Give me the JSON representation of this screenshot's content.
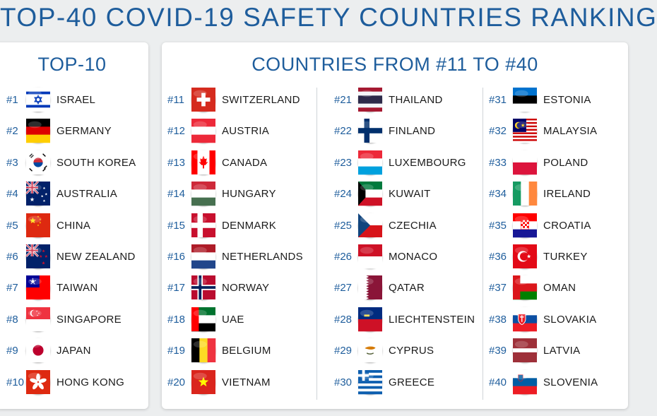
{
  "title": "TOP-40 COVID-19 SAFETY COUNTRIES RANKING",
  "left_panel": {
    "title": "TOP-10",
    "items": [
      {
        "rank": "#1",
        "country": "ISRAEL",
        "flag": "israel-flag-icon"
      },
      {
        "rank": "#2",
        "country": "GERMANY",
        "flag": "germany-flag-icon"
      },
      {
        "rank": "#3",
        "country": "SOUTH KOREA",
        "flag": "south-korea-flag-icon"
      },
      {
        "rank": "#4",
        "country": "AUSTRALIA",
        "flag": "australia-flag-icon"
      },
      {
        "rank": "#5",
        "country": "CHINA",
        "flag": "china-flag-icon"
      },
      {
        "rank": "#6",
        "country": "NEW ZEALAND",
        "flag": "new-zealand-flag-icon"
      },
      {
        "rank": "#7",
        "country": "TAIWAN",
        "flag": "taiwan-flag-icon"
      },
      {
        "rank": "#8",
        "country": "SINGAPORE",
        "flag": "singapore-flag-icon"
      },
      {
        "rank": "#9",
        "country": "JAPAN",
        "flag": "japan-flag-icon"
      },
      {
        "rank": "#10",
        "country": "HONG KONG",
        "flag": "hong-kong-flag-icon"
      }
    ]
  },
  "right_panel": {
    "title": "COUNTRIES FROM #11 TO #40",
    "columns": [
      {
        "items": [
          {
            "rank": "#11",
            "country": "SWITZERLAND",
            "flag": "switzerland-flag-icon"
          },
          {
            "rank": "#12",
            "country": "AUSTRIA",
            "flag": "austria-flag-icon"
          },
          {
            "rank": "#13",
            "country": "CANADA",
            "flag": "canada-flag-icon"
          },
          {
            "rank": "#14",
            "country": "HUNGARY",
            "flag": "hungary-flag-icon"
          },
          {
            "rank": "#15",
            "country": "DENMARK",
            "flag": "denmark-flag-icon"
          },
          {
            "rank": "#16",
            "country": "NETHERLANDS",
            "flag": "netherlands-flag-icon"
          },
          {
            "rank": "#17",
            "country": "NORWAY",
            "flag": "norway-flag-icon"
          },
          {
            "rank": "#18",
            "country": "UAE",
            "flag": "uae-flag-icon"
          },
          {
            "rank": "#19",
            "country": "BELGIUM",
            "flag": "belgium-flag-icon"
          },
          {
            "rank": "#20",
            "country": "VIETNAM",
            "flag": "vietnam-flag-icon"
          }
        ]
      },
      {
        "items": [
          {
            "rank": "#21",
            "country": "THAILAND",
            "flag": "thailand-flag-icon"
          },
          {
            "rank": "#22",
            "country": "FINLAND",
            "flag": "finland-flag-icon"
          },
          {
            "rank": "#23",
            "country": "LUXEMBOURG",
            "flag": "luxembourg-flag-icon"
          },
          {
            "rank": "#24",
            "country": "KUWAIT",
            "flag": "kuwait-flag-icon"
          },
          {
            "rank": "#25",
            "country": "CZECHIA",
            "flag": "czechia-flag-icon"
          },
          {
            "rank": "#26",
            "country": "MONACO",
            "flag": "monaco-flag-icon"
          },
          {
            "rank": "#27",
            "country": "QATAR",
            "flag": "qatar-flag-icon"
          },
          {
            "rank": "#28",
            "country": "LIECHTENSTEIN",
            "flag": "liechtenstein-flag-icon"
          },
          {
            "rank": "#29",
            "country": "CYPRUS",
            "flag": "cyprus-flag-icon"
          },
          {
            "rank": "#30",
            "country": "GREECE",
            "flag": "greece-flag-icon"
          }
        ]
      },
      {
        "items": [
          {
            "rank": "#31",
            "country": "ESTONIA",
            "flag": "estonia-flag-icon"
          },
          {
            "rank": "#32",
            "country": "MALAYSIA",
            "flag": "malaysia-flag-icon"
          },
          {
            "rank": "#33",
            "country": "POLAND",
            "flag": "poland-flag-icon"
          },
          {
            "rank": "#34",
            "country": "IRELAND",
            "flag": "ireland-flag-icon"
          },
          {
            "rank": "#35",
            "country": "CROATIA",
            "flag": "croatia-flag-icon"
          },
          {
            "rank": "#36",
            "country": "TURKEY",
            "flag": "turkey-flag-icon"
          },
          {
            "rank": "#37",
            "country": "OMAN",
            "flag": "oman-flag-icon"
          },
          {
            "rank": "#38",
            "country": "SLOVAKIA",
            "flag": "slovakia-flag-icon"
          },
          {
            "rank": "#39",
            "country": "LATVIA",
            "flag": "latvia-flag-icon"
          },
          {
            "rank": "#40",
            "country": "SLOVENIA",
            "flag": "slovenia-flag-icon"
          }
        ]
      }
    ]
  },
  "colors": {
    "title": "#1e5d9c",
    "rank": "#1e5d9c",
    "country": "#1b1b1b",
    "background": "#eceeef",
    "panel": "#ffffff"
  }
}
